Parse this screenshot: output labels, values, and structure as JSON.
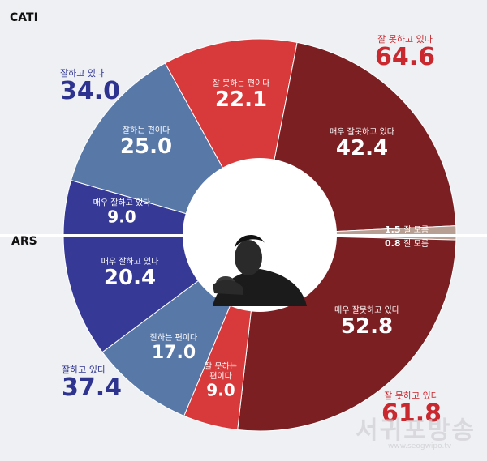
{
  "chart_data": [
    {
      "type": "pie",
      "section_label": "CATI",
      "slices": [
        {
          "label": "잘 못하는 편이다",
          "value": 22.1,
          "color": "#d8393a"
        },
        {
          "label": "매우 잘못하고 있다",
          "value": 42.4,
          "color": "#7b1f22"
        },
        {
          "label": "잘 모름",
          "value": 1.5,
          "color": "#b89f94"
        },
        {
          "label": "매우 잘하고 있다",
          "value": 9.0,
          "color": "#363a96"
        },
        {
          "label": "잘하는 편이다",
          "value": 25.0,
          "color": "#5878a8"
        }
      ],
      "totals": [
        {
          "label": "잘 못하고 있다",
          "value": "64.6"
        },
        {
          "label": "잘하고 있다",
          "value": "34.0"
        }
      ]
    },
    {
      "type": "pie",
      "section_label": "ARS",
      "slices": [
        {
          "label": "잘 모름",
          "value": 0.8,
          "color": "#b89f94"
        },
        {
          "label": "매우 잘못하고 있다",
          "value": 52.8,
          "color": "#7b1f22"
        },
        {
          "label": "잘 못하는\n편이다",
          "value": 9.0,
          "color": "#d8393a"
        },
        {
          "label": "잘하는 편이다",
          "value": 17.0,
          "color": "#5878a8"
        },
        {
          "label": "매우 잘하고 있다",
          "value": 20.4,
          "color": "#363a96"
        }
      ],
      "totals": [
        {
          "label": "잘 못하고 있다",
          "value": "61.8"
        },
        {
          "label": "잘하고 있다",
          "value": "37.4"
        }
      ]
    }
  ],
  "labels": {
    "cati": {
      "bad": {
        "cap": "잘 못하는 편이다",
        "num": "22.1"
      },
      "verybad": {
        "cap": "매우 잘못하고 있다",
        "num": "42.4"
      },
      "good": {
        "cap": "잘하는 편이다",
        "num": "25.0"
      },
      "verygood": {
        "cap": "매우 잘하고 있다",
        "num": "9.0"
      },
      "unknown": {
        "num": "1.5",
        "cap": "잘 모름"
      },
      "total_bad": {
        "cap": "잘 못하고 있다",
        "num": "64.6"
      },
      "total_good": {
        "cap": "잘하고 있다",
        "num": "34.0"
      }
    },
    "ars": {
      "verybad": {
        "cap": "매우 잘못하고 있다",
        "num": "52.8"
      },
      "bad": {
        "cap": "잘 못하는\n편이다",
        "num": "9.0"
      },
      "good": {
        "cap": "잘하는 편이다",
        "num": "17.0"
      },
      "verygood": {
        "cap": "매우 잘하고 있다",
        "num": "20.4"
      },
      "unknown": {
        "num": "0.8",
        "cap": "잘 모름"
      },
      "total_bad": {
        "cap": "잘 못하고 있다",
        "num": "61.8"
      },
      "total_good": {
        "cap": "잘하고 있다",
        "num": "37.4"
      }
    }
  },
  "watermark": {
    "text": "서귀포방송",
    "url": "www.seogwipo.tv"
  },
  "colors": {
    "background": "#eef0f3",
    "blue_text": "#2e338f",
    "red_text": "#c8282e"
  }
}
